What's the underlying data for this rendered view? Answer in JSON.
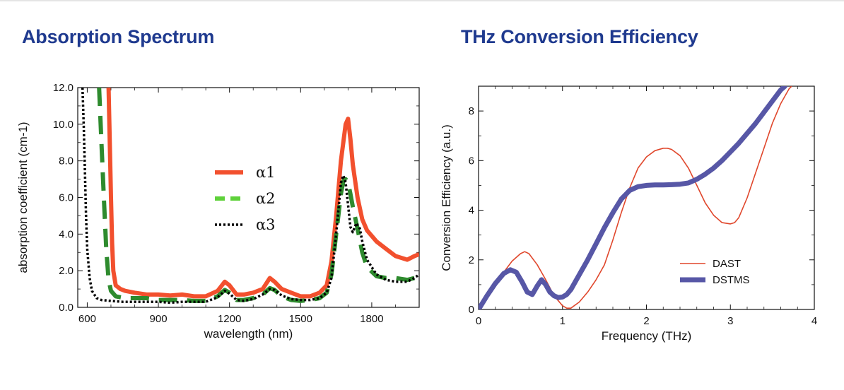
{
  "titles": {
    "left": "Absorption Spectrum",
    "right": "THz Conversion Efficiency"
  },
  "chart_data": [
    {
      "type": "line",
      "title": "Absorption Spectrum",
      "xlabel": "wavelength (nm)",
      "ylabel": "absorption coefficient (cm-1)",
      "xlim": [
        560,
        2000
      ],
      "ylim": [
        0,
        12
      ],
      "xticks": [
        "600",
        "900",
        "1200",
        "1500",
        "1800"
      ],
      "yticks": [
        "0.0",
        "2.0",
        "4.0",
        "6.0",
        "8.0",
        "10.0",
        "12.0"
      ],
      "legend_position": "center",
      "series": [
        {
          "name": "α1",
          "color": "#f2502e",
          "style": "solid",
          "x": [
            690,
            695,
            700,
            705,
            710,
            720,
            740,
            760,
            800,
            850,
            900,
            950,
            1000,
            1050,
            1100,
            1150,
            1180,
            1200,
            1230,
            1260,
            1300,
            1340,
            1370,
            1390,
            1420,
            1460,
            1500,
            1540,
            1580,
            1610,
            1630,
            1650,
            1670,
            1690,
            1700,
            1710,
            1720,
            1740,
            1760,
            1780,
            1820,
            1860,
            1900,
            1950,
            1980,
            2000
          ],
          "y": [
            12,
            9,
            6,
            3.5,
            2.0,
            1.2,
            1.0,
            0.9,
            0.8,
            0.7,
            0.7,
            0.65,
            0.7,
            0.6,
            0.6,
            0.9,
            1.4,
            1.2,
            0.7,
            0.7,
            0.8,
            1.0,
            1.6,
            1.4,
            1.0,
            0.8,
            0.6,
            0.6,
            0.8,
            1.2,
            2.5,
            5.0,
            8.0,
            10.0,
            10.3,
            9.2,
            7.8,
            6.0,
            4.8,
            4.2,
            3.6,
            3.2,
            2.8,
            2.6,
            2.8,
            2.9
          ]
        },
        {
          "name": "α2",
          "color": "#2e8b2e",
          "style": "dashed",
          "x": [
            650,
            660,
            670,
            680,
            690,
            700,
            720,
            760,
            800,
            850,
            900,
            950,
            1000,
            1050,
            1100,
            1150,
            1180,
            1200,
            1230,
            1260,
            1300,
            1340,
            1370,
            1390,
            1420,
            1460,
            1500,
            1540,
            1580,
            1610,
            1630,
            1650,
            1670,
            1680,
            1690,
            1700,
            1710,
            1720,
            1740,
            1760,
            1780,
            1820,
            1860,
            1900,
            1950,
            1980,
            2000
          ],
          "y": [
            12,
            9,
            6,
            3.2,
            1.5,
            0.9,
            0.6,
            0.5,
            0.5,
            0.5,
            0.4,
            0.4,
            0.4,
            0.35,
            0.35,
            0.6,
            0.95,
            0.8,
            0.4,
            0.4,
            0.5,
            0.7,
            1.05,
            0.95,
            0.6,
            0.4,
            0.35,
            0.4,
            0.5,
            0.8,
            1.8,
            4.0,
            6.2,
            6.9,
            7.0,
            6.8,
            6.2,
            5.5,
            4.3,
            3.0,
            2.2,
            1.7,
            1.6,
            1.6,
            1.5,
            1.6,
            1.7
          ]
        },
        {
          "name": "α3",
          "color": "#000000",
          "style": "dotted",
          "x": [
            580,
            585,
            590,
            595,
            600,
            610,
            620,
            640,
            660,
            700,
            750,
            800,
            850,
            900,
            950,
            1000,
            1050,
            1100,
            1150,
            1180,
            1200,
            1230,
            1260,
            1300,
            1340,
            1370,
            1390,
            1420,
            1460,
            1500,
            1540,
            1580,
            1610,
            1630,
            1650,
            1670,
            1680,
            1690,
            1700,
            1710,
            1720,
            1735,
            1750,
            1760,
            1780,
            1820,
            1860,
            1900,
            1950,
            1980,
            2000
          ],
          "y": [
            12,
            10,
            7.5,
            5.0,
            3.2,
            1.6,
            0.9,
            0.5,
            0.4,
            0.35,
            0.3,
            0.3,
            0.3,
            0.3,
            0.25,
            0.3,
            0.3,
            0.3,
            0.55,
            0.9,
            0.75,
            0.4,
            0.35,
            0.45,
            0.7,
            1.0,
            0.95,
            0.65,
            0.45,
            0.4,
            0.4,
            0.5,
            0.8,
            1.6,
            4.0,
            6.8,
            7.2,
            6.8,
            5.6,
            4.4,
            4.1,
            4.6,
            4.3,
            3.6,
            2.6,
            1.8,
            1.5,
            1.4,
            1.4,
            1.6,
            1.8
          ]
        }
      ]
    },
    {
      "type": "line",
      "title": "THz Conversion Efficiency",
      "xlabel": "Frequency (THz)",
      "ylabel": "Conversion Efficiency (a.u.)",
      "xlim": [
        0,
        4
      ],
      "ylim": [
        0,
        9
      ],
      "xticks": [
        "0",
        "1",
        "2",
        "3",
        "4"
      ],
      "yticks": [
        "0",
        "2",
        "4",
        "6",
        "8"
      ],
      "legend_position": "bottom-right",
      "series": [
        {
          "name": "DAST",
          "color": "#e0472c",
          "style": "thin",
          "x": [
            0,
            0.1,
            0.2,
            0.3,
            0.4,
            0.5,
            0.55,
            0.6,
            0.7,
            0.8,
            0.9,
            1.0,
            1.05,
            1.1,
            1.2,
            1.3,
            1.4,
            1.5,
            1.6,
            1.7,
            1.8,
            1.9,
            2.0,
            2.1,
            2.2,
            2.25,
            2.3,
            2.4,
            2.5,
            2.6,
            2.7,
            2.8,
            2.9,
            3.0,
            3.05,
            3.1,
            3.2,
            3.3,
            3.4,
            3.5,
            3.6,
            3.7,
            3.73
          ],
          "y": [
            0,
            0.5,
            1.0,
            1.5,
            1.95,
            2.25,
            2.33,
            2.25,
            1.8,
            1.2,
            0.55,
            0.15,
            0.05,
            0.05,
            0.3,
            0.7,
            1.2,
            1.8,
            2.8,
            3.9,
            4.9,
            5.7,
            6.15,
            6.4,
            6.5,
            6.5,
            6.45,
            6.2,
            5.7,
            5.0,
            4.3,
            3.8,
            3.5,
            3.45,
            3.5,
            3.7,
            4.5,
            5.5,
            6.5,
            7.5,
            8.3,
            8.9,
            9.0
          ]
        },
        {
          "name": "DSTMS",
          "color": "#5757a6",
          "style": "thick",
          "x": [
            0,
            0.1,
            0.2,
            0.3,
            0.38,
            0.45,
            0.52,
            0.58,
            0.64,
            0.7,
            0.75,
            0.8,
            0.85,
            0.9,
            0.95,
            1.0,
            1.05,
            1.1,
            1.2,
            1.3,
            1.4,
            1.5,
            1.6,
            1.7,
            1.8,
            1.9,
            2.0,
            2.1,
            2.2,
            2.3,
            2.4,
            2.5,
            2.6,
            2.7,
            2.8,
            2.9,
            3.0,
            3.1,
            3.2,
            3.3,
            3.4,
            3.5,
            3.6,
            3.65
          ],
          "y": [
            0,
            0.55,
            1.05,
            1.45,
            1.6,
            1.5,
            1.1,
            0.7,
            0.6,
            0.95,
            1.2,
            1.0,
            0.7,
            0.55,
            0.48,
            0.5,
            0.6,
            0.8,
            1.4,
            2.0,
            2.65,
            3.3,
            3.9,
            4.45,
            4.8,
            4.95,
            5.0,
            5.02,
            5.02,
            5.03,
            5.05,
            5.1,
            5.25,
            5.45,
            5.7,
            6.0,
            6.35,
            6.7,
            7.1,
            7.5,
            7.95,
            8.4,
            8.85,
            9.0
          ]
        }
      ]
    }
  ]
}
